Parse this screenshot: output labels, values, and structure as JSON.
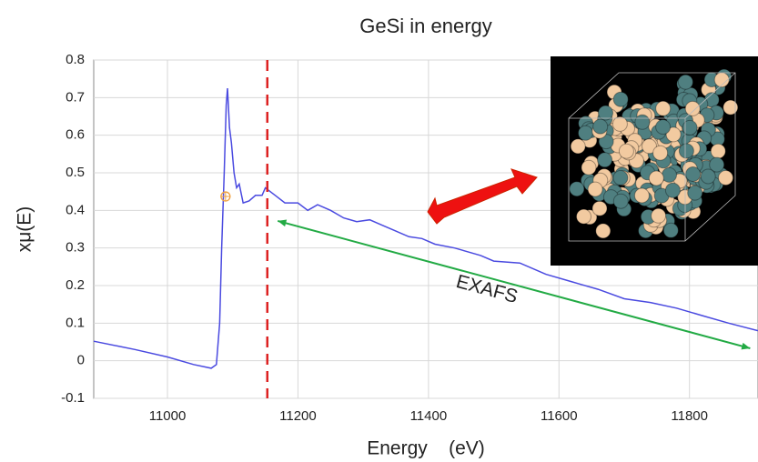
{
  "chart_data": {
    "type": "line",
    "title": "GeSi in energy",
    "x_label": "Energy    (eV)",
    "y_label": "xμ(E)",
    "x": [
      10887,
      10950,
      11000,
      11040,
      11067,
      11075,
      11080,
      11083,
      11087,
      11090,
      11092,
      11095,
      11098,
      11102,
      11106,
      11110,
      11116,
      11125,
      11135,
      11145,
      11150,
      11165,
      11180,
      11200,
      11215,
      11230,
      11250,
      11270,
      11290,
      11310,
      11330,
      11350,
      11370,
      11390,
      11410,
      11440,
      11480,
      11500,
      11540,
      11580,
      11620,
      11660,
      11700,
      11740,
      11780,
      11820,
      11860,
      11905
    ],
    "series": [
      {
        "name": "xμ(E)",
        "color": "#4a4ae0",
        "values": [
          0.052,
          0.03,
          0.01,
          -0.01,
          -0.02,
          -0.01,
          0.1,
          0.3,
          0.5,
          0.68,
          0.725,
          0.62,
          0.58,
          0.5,
          0.46,
          0.47,
          0.42,
          0.425,
          0.44,
          0.44,
          0.46,
          0.44,
          0.42,
          0.42,
          0.4,
          0.415,
          0.4,
          0.38,
          0.37,
          0.375,
          0.36,
          0.345,
          0.33,
          0.325,
          0.31,
          0.3,
          0.28,
          0.265,
          0.26,
          0.23,
          0.21,
          0.19,
          0.165,
          0.155,
          0.14,
          0.12,
          0.1,
          0.08
        ]
      }
    ],
    "xlim": [
      10887,
      11905
    ],
    "ylim": [
      -0.1,
      0.8
    ],
    "xticks": [
      11000,
      11200,
      11400,
      11600,
      11800
    ],
    "yticks": [
      -0.1,
      0,
      0.1,
      0.2,
      0.3,
      0.4,
      0.5,
      0.6,
      0.7,
      0.8
    ],
    "grid": true,
    "edge_line_x": 11153,
    "edge_line_color": "#dd2222",
    "e0_marker": {
      "x": 11089,
      "y": 0.437
    },
    "annotation": "EXAFS",
    "exafs_arrow": {
      "x": [
        11169,
        11893
      ],
      "y": [
        0.372,
        0.033
      ],
      "color": "#22aa44"
    }
  }
}
